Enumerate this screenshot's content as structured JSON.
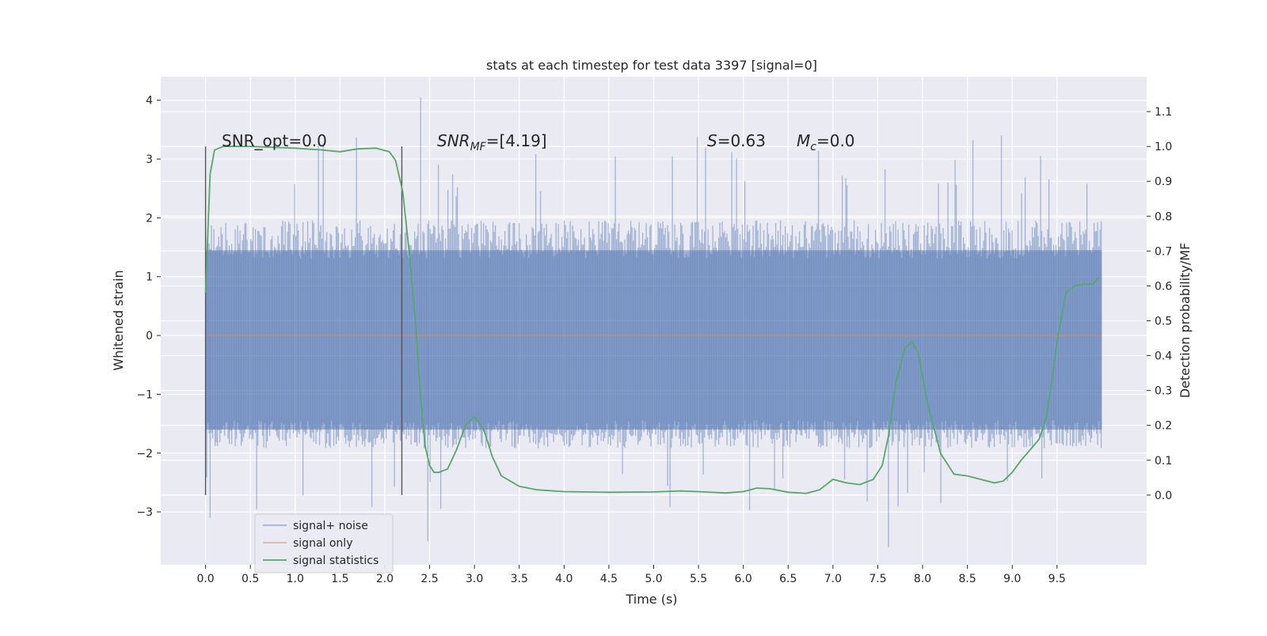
{
  "chart_data": {
    "type": "line",
    "title": "stats at each timestep for test data 3397 [signal=0]",
    "xlabel": "Time (s)",
    "ylabel_left": "Whitened strain",
    "ylabel_right": "Detection probability/MF",
    "xlim": [
      -0.5,
      10.5
    ],
    "ylim_left": [
      -3.9,
      4.4
    ],
    "ylim_right": [
      -0.2,
      1.2
    ],
    "xticks": [
      "0.0",
      "0.5",
      "1.0",
      "1.5",
      "2.0",
      "2.5",
      "3.0",
      "3.5",
      "4.0",
      "4.5",
      "5.0",
      "5.5",
      "6.0",
      "6.5",
      "7.0",
      "7.5",
      "8.0",
      "8.5",
      "9.0",
      "9.5"
    ],
    "xtick_values": [
      0,
      0.5,
      1,
      1.5,
      2,
      2.5,
      3,
      3.5,
      4,
      4.5,
      5,
      5.5,
      6,
      6.5,
      7,
      7.5,
      8,
      8.5,
      9,
      9.5
    ],
    "yticks_left": [
      "−3",
      "−2",
      "−1",
      "0",
      "1",
      "2",
      "3",
      "4"
    ],
    "ytick_values_left": [
      -3,
      -2,
      -1,
      0,
      1,
      2,
      3,
      4
    ],
    "yticks_right": [
      "0.0",
      "0.1",
      "0.2",
      "0.3",
      "0.4",
      "0.5",
      "0.6",
      "0.7",
      "0.8",
      "0.9",
      "1.0",
      "1.1"
    ],
    "ytick_values_right": [
      0,
      0.1,
      0.2,
      0.3,
      0.4,
      0.5,
      0.6,
      0.7,
      0.8,
      0.9,
      1.0,
      1.1
    ],
    "grid": true,
    "legend_placement": "lower-left",
    "annotations": {
      "snr_opt": "SNR_opt=0.0",
      "snr_mf_prefix": "SNR",
      "snr_mf_sub": "MF",
      "snr_mf_value": "=[4.19]",
      "s_prefix": "S",
      "s_value": "=0.63",
      "mc_prefix": "M",
      "mc_sub": "c",
      "mc_value": "=0.0"
    },
    "series": [
      {
        "name": "signal+ noise",
        "axis": "left",
        "color": "#4c72b0",
        "x_range": [
          0,
          10
        ],
        "typical_band": [
          -1.6,
          1.45
        ],
        "extremes": [
          -3.6,
          4.05
        ]
      },
      {
        "name": "signal only",
        "axis": "left",
        "color": "#dd8452",
        "x": [
          0,
          10
        ],
        "y": [
          0,
          0
        ]
      },
      {
        "name": "signal statistics",
        "axis": "right",
        "color": "#55a868",
        "x": [
          0.0,
          0.05,
          0.1,
          0.2,
          0.3,
          0.5,
          1.0,
          1.3,
          1.5,
          1.7,
          1.9,
          2.05,
          2.12,
          2.2,
          2.28,
          2.35,
          2.4,
          2.45,
          2.5,
          2.55,
          2.6,
          2.7,
          2.8,
          2.9,
          3.0,
          3.1,
          3.2,
          3.3,
          3.5,
          3.7,
          4.0,
          4.5,
          5.0,
          5.3,
          5.5,
          5.8,
          6.0,
          6.15,
          6.3,
          6.5,
          6.7,
          6.85,
          7.0,
          7.15,
          7.3,
          7.45,
          7.55,
          7.62,
          7.7,
          7.8,
          7.88,
          7.95,
          8.05,
          8.2,
          8.35,
          8.5,
          8.65,
          8.8,
          8.9,
          9.0,
          9.1,
          9.2,
          9.3,
          9.38,
          9.45,
          9.5,
          9.6,
          9.7,
          9.8,
          9.9,
          9.97
        ],
        "y": [
          0.58,
          0.92,
          0.99,
          1.0,
          1.0,
          1.0,
          0.995,
          0.99,
          0.985,
          0.993,
          0.995,
          0.985,
          0.96,
          0.87,
          0.68,
          0.47,
          0.28,
          0.14,
          0.085,
          0.065,
          0.065,
          0.075,
          0.13,
          0.2,
          0.225,
          0.19,
          0.11,
          0.055,
          0.025,
          0.015,
          0.01,
          0.008,
          0.009,
          0.012,
          0.01,
          0.006,
          0.01,
          0.02,
          0.018,
          0.008,
          0.005,
          0.015,
          0.045,
          0.035,
          0.03,
          0.045,
          0.085,
          0.17,
          0.32,
          0.42,
          0.44,
          0.41,
          0.27,
          0.12,
          0.06,
          0.055,
          0.045,
          0.035,
          0.04,
          0.065,
          0.1,
          0.13,
          0.16,
          0.22,
          0.34,
          0.44,
          0.58,
          0.6,
          0.605,
          0.605,
          0.625
        ]
      }
    ]
  }
}
